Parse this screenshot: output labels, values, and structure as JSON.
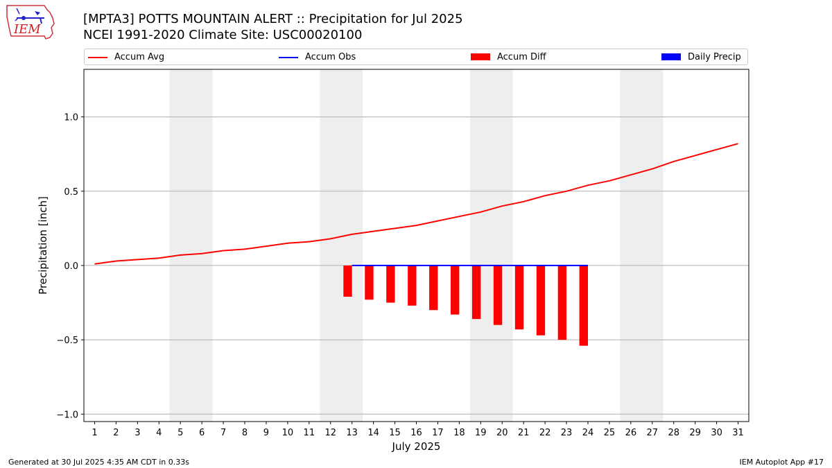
{
  "header": {
    "title_line1": "[MPTA3] POTTS MOUNTAIN ALERT :: Precipitation for Jul 2025",
    "title_line2": "NCEI 1991-2020 Climate Site: USC00020100",
    "logo_text": "IEM"
  },
  "footer": {
    "left": "Generated at 30 Jul 2025 4:35 AM CDT in 0.33s",
    "right": "IEM Autoplot App #17"
  },
  "colors": {
    "accum_avg": "#ff0000",
    "accum_obs": "#0000ff",
    "accum_diff": "#ff0000",
    "daily_precip": "#0000ff",
    "weekend_band": "#eeeeee",
    "grid": "#b0b0b0"
  },
  "chart_data": {
    "type": "line",
    "xlabel": "July 2025",
    "ylabel": "Precipitation [inch]",
    "xlim": [
      0.5,
      31.5
    ],
    "ylim": [
      -1.05,
      1.32
    ],
    "x_ticks": [
      1,
      2,
      3,
      4,
      5,
      6,
      7,
      8,
      9,
      10,
      11,
      12,
      13,
      14,
      15,
      16,
      17,
      18,
      19,
      20,
      21,
      22,
      23,
      24,
      25,
      26,
      27,
      28,
      29,
      30,
      31
    ],
    "y_ticks": [
      -1.0,
      -0.5,
      0.0,
      0.5,
      1.0
    ],
    "y_tick_labels": [
      "−1.0",
      "−0.5",
      "0.0",
      "0.5",
      "1.0"
    ],
    "grid": "horizontal",
    "legend_position": "top",
    "weekend_bands": [
      [
        5,
        6
      ],
      [
        12,
        13
      ],
      [
        19,
        20
      ],
      [
        26,
        27
      ]
    ],
    "legend": [
      "Accum Avg",
      "Accum Obs",
      "Accum Diff",
      "Daily Precip"
    ],
    "series": [
      {
        "name": "Accum Avg",
        "kind": "line",
        "x": [
          1,
          2,
          3,
          4,
          5,
          6,
          7,
          8,
          9,
          10,
          11,
          12,
          13,
          14,
          15,
          16,
          17,
          18,
          19,
          20,
          21,
          22,
          23,
          24,
          25,
          26,
          27,
          28,
          29,
          30,
          31
        ],
        "values": [
          0.01,
          0.03,
          0.04,
          0.05,
          0.07,
          0.08,
          0.1,
          0.11,
          0.13,
          0.15,
          0.16,
          0.18,
          0.21,
          0.23,
          0.25,
          0.27,
          0.3,
          0.33,
          0.36,
          0.4,
          0.43,
          0.47,
          0.5,
          0.54,
          0.57,
          0.61,
          0.65,
          0.7,
          0.74,
          0.78,
          0.82
        ]
      },
      {
        "name": "Accum Obs",
        "kind": "line",
        "x": [
          13,
          14,
          15,
          16,
          17,
          18,
          19,
          20,
          21,
          22,
          23,
          24
        ],
        "values": [
          0,
          0,
          0,
          0,
          0,
          0,
          0,
          0,
          0,
          0,
          0,
          0
        ]
      },
      {
        "name": "Accum Diff",
        "kind": "bar",
        "x": [
          12.8,
          13.8,
          14.8,
          15.8,
          16.8,
          17.8,
          18.8,
          19.8,
          20.8,
          21.8,
          22.8,
          23.8
        ],
        "values": [
          -0.21,
          -0.23,
          -0.25,
          -0.27,
          -0.3,
          -0.33,
          -0.36,
          -0.4,
          -0.43,
          -0.47,
          -0.5,
          -0.54
        ]
      },
      {
        "name": "Daily Precip",
        "kind": "bar",
        "x": [],
        "values": []
      }
    ]
  }
}
